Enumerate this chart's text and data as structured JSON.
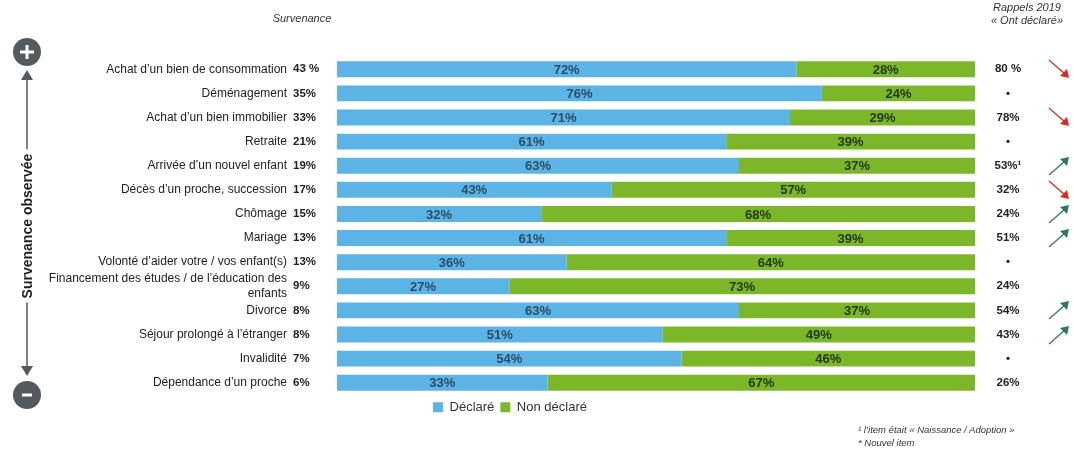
{
  "chart_data": {
    "type": "bar",
    "orientation": "horizontal",
    "stacked": true,
    "ylabel": "Survenance observée",
    "categories": [
      "Achat d’un bien de consommation",
      "Déménagement",
      "Achat d’un bien immobilier",
      "Retraite",
      "Arrivée d’un nouvel enfant",
      "Décès d’un proche, succession",
      "Chômage",
      "Mariage",
      "Volonté d’aider votre / vos enfant(s)",
      "Financement des études / de l’éducation des enfants",
      "Divorce",
      "Séjour prolongé à l’étranger",
      "Invalidité",
      "Dépendance d’un proche"
    ],
    "series": [
      {
        "name": "Déclaré",
        "color": "#5bb4e5",
        "values": [
          72,
          76,
          71,
          61,
          63,
          43,
          32,
          61,
          36,
          27,
          63,
          51,
          54,
          33
        ],
        "value_labels": [
          "72%",
          "76%",
          "71%",
          "61%",
          "63%",
          "43%",
          "32%",
          "61%",
          "36%",
          "27%",
          "63%",
          "51%",
          "54%",
          "33%"
        ]
      },
      {
        "name": "Non déclaré",
        "color": "#7cb72a",
        "values": [
          28,
          24,
          29,
          39,
          37,
          57,
          68,
          39,
          64,
          73,
          37,
          49,
          46,
          67
        ],
        "value_labels": [
          "28%",
          "24%",
          "29%",
          "39%",
          "37%",
          "57%",
          "68%",
          "39%",
          "64%",
          "73%",
          "37%",
          "49%",
          "46%",
          "67%"
        ]
      }
    ],
    "xlim": [
      0,
      100
    ],
    "tick_labels": "y",
    "grid": false,
    "legend": "bottom",
    "annotations": [
      "Survenance",
      "Rappels 2019",
      "« Ont déclaré»",
      "¹ l’item était « Naissance / Adoption »",
      "* Nouvel item",
      "43 %",
      "35%",
      "33%",
      "21%",
      "19%",
      "17%",
      "15%",
      "13%",
      "13%",
      "9%",
      "8%",
      "8%",
      "7%",
      "6%",
      "80 %",
      "•",
      "78%",
      "•",
      "53%¹",
      "32%",
      "24%",
      "51%",
      "•",
      "24%",
      "54%",
      "43%",
      "•",
      "26%"
    ]
  }
}
